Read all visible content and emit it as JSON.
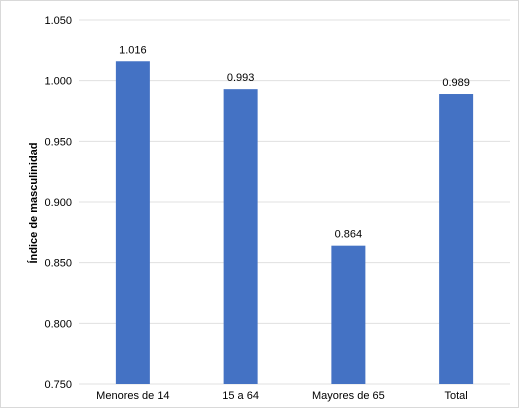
{
  "chart_data": {
    "type": "bar",
    "title": "",
    "xlabel": "",
    "ylabel": "Índice de masculinidad",
    "categories": [
      "Menores de 14",
      "15 a 64",
      "Mayores de 65",
      "Total"
    ],
    "values": [
      1.016,
      0.993,
      0.864,
      0.989
    ],
    "value_labels": [
      "1.016",
      "0.993",
      "0.864",
      "0.989"
    ],
    "ylim": [
      0.75,
      1.05
    ],
    "yticks": [
      0.75,
      0.8,
      0.85,
      0.9,
      0.95,
      1.0,
      1.05
    ],
    "ytick_labels": [
      "0.750",
      "0.800",
      "0.850",
      "0.900",
      "0.950",
      "1.000",
      "1.050"
    ],
    "grid": true,
    "legend": "none",
    "colors": {
      "bar": "#4472C4",
      "grid": "#e0e0e0",
      "text": "#000000"
    }
  }
}
